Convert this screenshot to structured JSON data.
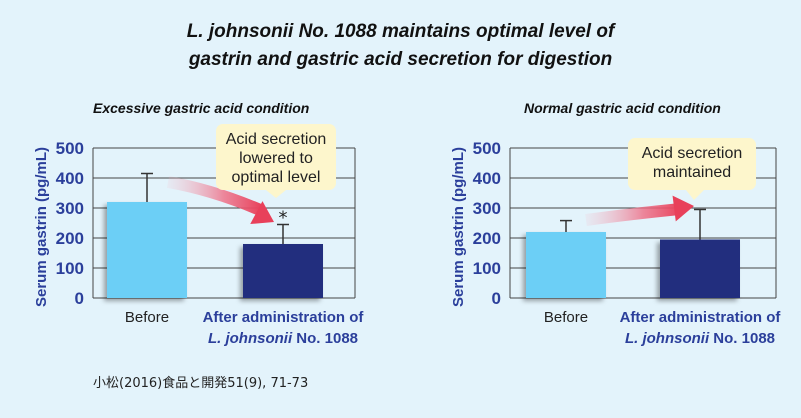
{
  "title_line1": "L. johnsonii No. 1088 maintains optimal level of",
  "title_line2": "gastrin and gastric acid secretion for digestion",
  "source": "小松(2016)食品と開発51(9), 71-73",
  "colors": {
    "before_bar": "#6ccff6",
    "after_bar": "#232f7e",
    "axis_text": "#2b3f9b",
    "arrow": "#e8405a",
    "callout_bg": "#fdf6cc",
    "background": "#e3f3fb"
  },
  "chart_data": [
    {
      "type": "bar",
      "title": "Excessive gastric acid condition",
      "ylabel": "Serum gastrin (pg/mL)",
      "ylim": [
        0,
        500
      ],
      "yticks": [
        0,
        100,
        200,
        300,
        400,
        500
      ],
      "categories": [
        "Before",
        "After administration of L. johnsonii No. 1088"
      ],
      "category_lines": [
        [
          "Before"
        ],
        [
          "After administration of",
          "L. johnsonii No. 1088"
        ]
      ],
      "values": [
        320,
        180
      ],
      "error_upper": [
        95,
        65
      ],
      "significance": [
        "",
        "*"
      ],
      "callout": [
        "Acid secretion",
        "lowered to",
        "optimal level"
      ],
      "grid": true
    },
    {
      "type": "bar",
      "title": "Normal gastric acid condition",
      "ylabel": "Serum gastrin (pg/mL)",
      "ylim": [
        0,
        500
      ],
      "yticks": [
        0,
        100,
        200,
        300,
        400,
        500
      ],
      "categories": [
        "Before",
        "After administration of L. johnsonii No. 1088"
      ],
      "category_lines": [
        [
          "Before"
        ],
        [
          "After administration of",
          "L. johnsonii No. 1088"
        ]
      ],
      "values": [
        220,
        195
      ],
      "error_upper": [
        38,
        100
      ],
      "significance": [
        "",
        ""
      ],
      "callout": [
        "Acid secretion",
        "maintained"
      ],
      "grid": true
    }
  ]
}
